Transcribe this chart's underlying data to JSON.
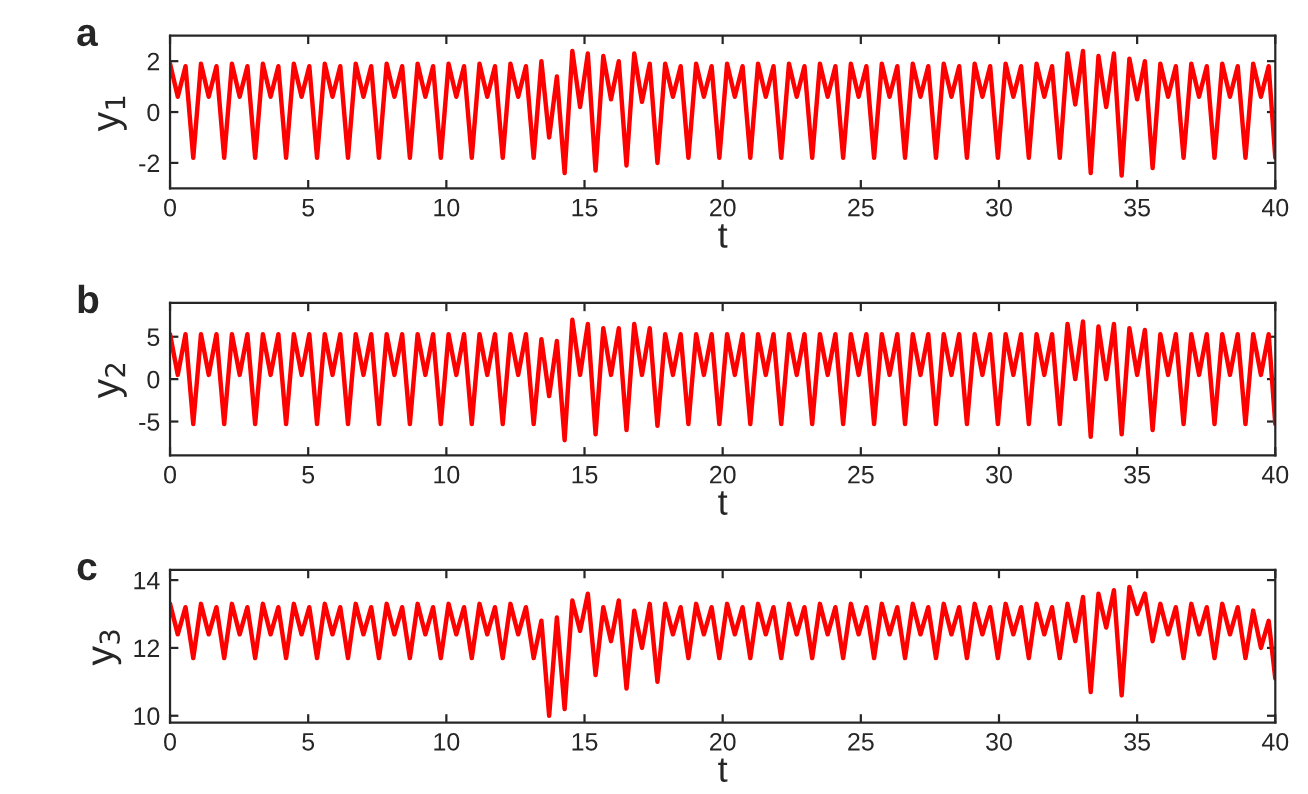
{
  "chart_data": [
    {
      "type": "line",
      "annotations": [
        "a"
      ],
      "xlabel": "t",
      "ylabel": "y$_{1}$",
      "xlim": [
        0,
        40
      ],
      "xticks": [
        0,
        5,
        10,
        15,
        20,
        25,
        30,
        35,
        40
      ],
      "ylim": [
        -3,
        3
      ],
      "yticks": [
        -2,
        0,
        2
      ],
      "grid": false,
      "legend": false,
      "marker": "none",
      "line_style": "solid",
      "x": [
        0,
        0.28,
        0.56,
        0.84,
        1.12,
        1.4,
        1.68,
        1.96,
        2.24,
        2.52,
        2.8,
        3.08,
        3.36,
        3.64,
        3.92,
        4.2,
        4.48,
        4.76,
        5.04,
        5.32,
        5.6,
        5.88,
        6.16,
        6.44,
        6.72,
        7,
        7.28,
        7.56,
        7.84,
        8.12,
        8.4,
        8.68,
        8.96,
        9.24,
        9.52,
        9.8,
        10.08,
        10.36,
        10.64,
        10.92,
        11.2,
        11.48,
        11.76,
        12.04,
        12.32,
        12.6,
        12.88,
        13.16,
        13.44,
        13.72,
        14,
        14.28,
        14.56,
        14.84,
        15.12,
        15.4,
        15.68,
        15.96,
        16.24,
        16.52,
        16.8,
        17.08,
        17.36,
        17.64,
        17.92,
        18.2,
        18.48,
        18.76,
        19.04,
        19.32,
        19.6,
        19.88,
        20.16,
        20.44,
        20.72,
        21,
        21.28,
        21.56,
        21.84,
        22.12,
        22.4,
        22.68,
        22.96,
        23.24,
        23.52,
        23.8,
        24.08,
        24.36,
        24.64,
        24.92,
        25.2,
        25.48,
        25.76,
        26.04,
        26.32,
        26.6,
        26.88,
        27.16,
        27.44,
        27.72,
        28,
        28.28,
        28.56,
        28.84,
        29.12,
        29.4,
        29.68,
        29.96,
        30.24,
        30.52,
        30.8,
        31.08,
        31.36,
        31.64,
        31.92,
        32.2,
        32.48,
        32.76,
        33.04,
        33.32,
        33.6,
        33.88,
        34.16,
        34.44,
        34.72,
        35,
        35.28,
        35.56,
        35.84,
        36.12,
        36.4,
        36.68,
        36.96,
        37.24,
        37.52,
        37.8,
        38.08,
        38.36,
        38.64,
        38.92,
        39.2,
        39.48,
        39.76,
        40
      ],
      "series": [
        {
          "color": "#ff0000",
          "values": [
            1.9,
            0.6,
            1.8,
            -1.8,
            1.9,
            0.6,
            1.8,
            -1.8,
            1.9,
            0.6,
            1.8,
            -1.8,
            1.9,
            0.6,
            1.8,
            -1.8,
            1.9,
            0.6,
            1.8,
            -1.8,
            1.9,
            0.6,
            1.8,
            -1.8,
            1.9,
            0.6,
            1.8,
            -1.8,
            1.9,
            0.6,
            1.8,
            -1.8,
            1.9,
            0.6,
            1.8,
            -1.8,
            1.9,
            0.6,
            1.8,
            -1.8,
            1.9,
            0.6,
            1.8,
            -1.8,
            1.9,
            0.6,
            1.8,
            -1.8,
            2.0,
            -1.0,
            1.4,
            -2.4,
            2.4,
            0.2,
            2.3,
            -2.3,
            2.2,
            0.5,
            2.0,
            -2.1,
            2.3,
            0.4,
            1.9,
            -2.0,
            1.9,
            0.6,
            1.8,
            -1.8,
            1.9,
            0.6,
            1.8,
            -1.8,
            1.9,
            0.6,
            1.8,
            -1.8,
            1.9,
            0.6,
            1.8,
            -1.8,
            1.9,
            0.6,
            1.8,
            -1.8,
            1.9,
            0.6,
            1.8,
            -1.8,
            1.9,
            0.6,
            1.8,
            -1.8,
            1.9,
            0.6,
            1.8,
            -1.8,
            1.9,
            0.6,
            1.8,
            -1.8,
            1.9,
            0.6,
            1.8,
            -1.8,
            1.9,
            0.6,
            1.8,
            -1.8,
            1.9,
            0.6,
            1.8,
            -1.8,
            1.9,
            0.6,
            1.8,
            -1.8,
            2.3,
            0.3,
            2.4,
            -2.4,
            2.2,
            0.2,
            2.3,
            -2.5,
            2.1,
            0.5,
            2.0,
            -2.2,
            1.9,
            0.6,
            1.8,
            -1.8,
            1.9,
            0.6,
            1.8,
            -1.8,
            1.9,
            0.6,
            1.8,
            -1.8,
            1.9,
            0.6,
            1.8,
            -1.8
          ]
        }
      ]
    },
    {
      "type": "line",
      "annotations": [
        "b"
      ],
      "xlabel": "t",
      "ylabel": "y$_{2}$",
      "xlim": [
        0,
        40
      ],
      "xticks": [
        0,
        5,
        10,
        15,
        20,
        25,
        30,
        35,
        40
      ],
      "ylim": [
        -9,
        9
      ],
      "yticks": [
        -5,
        0,
        5
      ],
      "grid": false,
      "legend": false,
      "marker": "none",
      "line_style": "solid",
      "x": [
        0,
        0.28,
        0.56,
        0.84,
        1.12,
        1.4,
        1.68,
        1.96,
        2.24,
        2.52,
        2.8,
        3.08,
        3.36,
        3.64,
        3.92,
        4.2,
        4.48,
        4.76,
        5.04,
        5.32,
        5.6,
        5.88,
        6.16,
        6.44,
        6.72,
        7,
        7.28,
        7.56,
        7.84,
        8.12,
        8.4,
        8.68,
        8.96,
        9.24,
        9.52,
        9.8,
        10.08,
        10.36,
        10.64,
        10.92,
        11.2,
        11.48,
        11.76,
        12.04,
        12.32,
        12.6,
        12.88,
        13.16,
        13.44,
        13.72,
        14,
        14.28,
        14.56,
        14.84,
        15.12,
        15.4,
        15.68,
        15.96,
        16.24,
        16.52,
        16.8,
        17.08,
        17.36,
        17.64,
        17.92,
        18.2,
        18.48,
        18.76,
        19.04,
        19.32,
        19.6,
        19.88,
        20.16,
        20.44,
        20.72,
        21,
        21.28,
        21.56,
        21.84,
        22.12,
        22.4,
        22.68,
        22.96,
        23.24,
        23.52,
        23.8,
        24.08,
        24.36,
        24.64,
        24.92,
        25.2,
        25.48,
        25.76,
        26.04,
        26.32,
        26.6,
        26.88,
        27.16,
        27.44,
        27.72,
        28,
        28.28,
        28.56,
        28.84,
        29.12,
        29.4,
        29.68,
        29.96,
        30.24,
        30.52,
        30.8,
        31.08,
        31.36,
        31.64,
        31.92,
        32.2,
        32.48,
        32.76,
        33.04,
        33.32,
        33.6,
        33.88,
        34.16,
        34.44,
        34.72,
        35,
        35.28,
        35.56,
        35.84,
        36.12,
        36.4,
        36.68,
        36.96,
        37.24,
        37.52,
        37.8,
        38.08,
        38.36,
        38.64,
        38.92,
        39.2,
        39.48,
        39.76,
        40
      ],
      "series": [
        {
          "color": "#ff0000",
          "values": [
            5.3,
            0.5,
            5.3,
            -5.3,
            5.3,
            0.5,
            5.3,
            -5.3,
            5.3,
            0.5,
            5.3,
            -5.3,
            5.3,
            0.5,
            5.3,
            -5.3,
            5.3,
            0.5,
            5.3,
            -5.3,
            5.3,
            0.5,
            5.3,
            -5.3,
            5.3,
            0.5,
            5.3,
            -5.3,
            5.3,
            0.5,
            5.3,
            -5.3,
            5.3,
            0.5,
            5.3,
            -5.3,
            5.3,
            0.5,
            5.3,
            -5.3,
            5.3,
            0.5,
            5.3,
            -5.3,
            5.3,
            0.5,
            5.3,
            -5.3,
            4.7,
            -2,
            4.5,
            -7.2,
            7,
            0.5,
            6.5,
            -6.5,
            6,
            0.5,
            6,
            -6,
            6.5,
            0.5,
            6,
            -5.5,
            5.3,
            0.5,
            5.3,
            -5.3,
            5.3,
            0.5,
            5.3,
            -5.3,
            5.3,
            0.5,
            5.3,
            -5.3,
            5.3,
            0.5,
            5.3,
            -5.3,
            5.3,
            0.5,
            5.3,
            -5.3,
            5.3,
            0.5,
            5.3,
            -5.3,
            5.3,
            0.5,
            5.3,
            -5.3,
            5.3,
            0.5,
            5.3,
            -5.3,
            5.3,
            0.5,
            5.3,
            -5.3,
            5.3,
            0.5,
            5.3,
            -5.3,
            5.3,
            0.5,
            5.3,
            -5.3,
            5.3,
            0.5,
            5.3,
            -5.3,
            5.3,
            0.5,
            5.3,
            -5.3,
            6.5,
            0,
            6.8,
            -6.8,
            6.2,
            0,
            6.5,
            -6.5,
            6,
            0.5,
            5.8,
            -6,
            5.3,
            0.5,
            5.3,
            -5.3,
            5.3,
            0.5,
            5.3,
            -5.3,
            5.3,
            0.5,
            5.3,
            -5.3,
            5.3,
            0.5,
            5.3,
            -5.3
          ]
        }
      ]
    },
    {
      "type": "line",
      "annotations": [
        "c"
      ],
      "xlabel": "t",
      "ylabel": "y$_{3}$",
      "xlim": [
        0,
        40
      ],
      "xticks": [
        0,
        5,
        10,
        15,
        20,
        25,
        30,
        35,
        40
      ],
      "ylim": [
        9.8,
        14.3
      ],
      "yticks": [
        10,
        12,
        14
      ],
      "grid": false,
      "legend": false,
      "marker": "none",
      "line_style": "solid",
      "x": [
        0,
        0.28,
        0.56,
        0.84,
        1.12,
        1.4,
        1.68,
        1.96,
        2.24,
        2.52,
        2.8,
        3.08,
        3.36,
        3.64,
        3.92,
        4.2,
        4.48,
        4.76,
        5.04,
        5.32,
        5.6,
        5.88,
        6.16,
        6.44,
        6.72,
        7,
        7.28,
        7.56,
        7.84,
        8.12,
        8.4,
        8.68,
        8.96,
        9.24,
        9.52,
        9.8,
        10.08,
        10.36,
        10.64,
        10.92,
        11.2,
        11.48,
        11.76,
        12.04,
        12.32,
        12.6,
        12.88,
        13.16,
        13.44,
        13.72,
        14,
        14.28,
        14.56,
        14.84,
        15.12,
        15.4,
        15.68,
        15.96,
        16.24,
        16.52,
        16.8,
        17.08,
        17.36,
        17.64,
        17.92,
        18.2,
        18.48,
        18.76,
        19.04,
        19.32,
        19.6,
        19.88,
        20.16,
        20.44,
        20.72,
        21,
        21.28,
        21.56,
        21.84,
        22.12,
        22.4,
        22.68,
        22.96,
        23.24,
        23.52,
        23.8,
        24.08,
        24.36,
        24.64,
        24.92,
        25.2,
        25.48,
        25.76,
        26.04,
        26.32,
        26.6,
        26.88,
        27.16,
        27.44,
        27.72,
        28,
        28.28,
        28.56,
        28.84,
        29.12,
        29.4,
        29.68,
        29.96,
        30.24,
        30.52,
        30.8,
        31.08,
        31.36,
        31.64,
        31.92,
        32.2,
        32.48,
        32.76,
        33.04,
        33.32,
        33.6,
        33.88,
        34.16,
        34.44,
        34.72,
        35,
        35.28,
        35.56,
        35.84,
        36.12,
        36.4,
        36.68,
        36.96,
        37.24,
        37.52,
        37.8,
        38.08,
        38.36,
        38.64,
        38.92,
        39.2,
        39.48,
        39.76,
        40
      ],
      "series": [
        {
          "color": "#ff0000",
          "values": [
            13.3,
            12.4,
            13.2,
            11.7,
            13.3,
            12.4,
            13.2,
            11.7,
            13.3,
            12.4,
            13.2,
            11.7,
            13.3,
            12.4,
            13.2,
            11.7,
            13.3,
            12.4,
            13.2,
            11.7,
            13.3,
            12.4,
            13.2,
            11.7,
            13.3,
            12.4,
            13.2,
            11.7,
            13.3,
            12.4,
            13.2,
            11.7,
            13.3,
            12.4,
            13.2,
            11.7,
            13.3,
            12.4,
            13.2,
            11.7,
            13.3,
            12.4,
            13.2,
            11.7,
            13.3,
            12.4,
            13.2,
            11.7,
            12.8,
            10.0,
            12.9,
            10.2,
            13.4,
            12.5,
            13.6,
            11.2,
            13.2,
            12.2,
            13.4,
            10.8,
            13.1,
            12.0,
            13.3,
            11.0,
            13.3,
            12.4,
            13.2,
            11.7,
            13.3,
            12.4,
            13.2,
            11.7,
            13.3,
            12.4,
            13.2,
            11.7,
            13.3,
            12.4,
            13.2,
            11.7,
            13.3,
            12.4,
            13.2,
            11.7,
            13.3,
            12.4,
            13.2,
            11.7,
            13.3,
            12.4,
            13.2,
            11.7,
            13.3,
            12.4,
            13.2,
            11.7,
            13.3,
            12.4,
            13.2,
            11.7,
            13.3,
            12.4,
            13.2,
            11.7,
            13.3,
            12.4,
            13.2,
            11.7,
            13.3,
            12.4,
            13.2,
            11.7,
            13.3,
            12.4,
            13.2,
            11.7,
            13.3,
            12.2,
            13.5,
            10.7,
            13.6,
            12.6,
            13.7,
            10.6,
            13.8,
            13.0,
            13.6,
            12.2,
            13.3,
            12.4,
            13.2,
            11.7,
            13.3,
            12.4,
            13.2,
            11.7,
            13.3,
            12.4,
            13.2,
            11.7,
            13.1,
            12.0,
            12.8,
            11.1
          ]
        }
      ]
    }
  ]
}
